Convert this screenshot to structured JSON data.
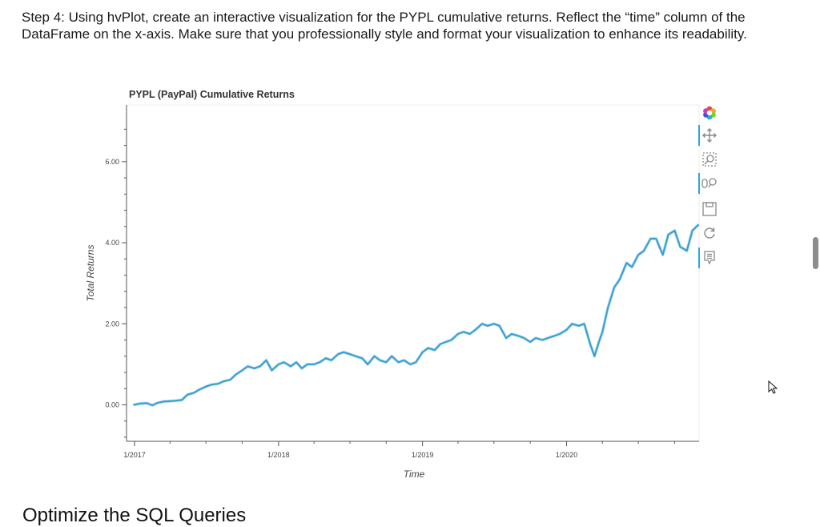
{
  "step": {
    "text": "Step 4: Using hvPlot, create an interactive visualization for the PYPL cumulative returns. Reflect the “time” column of the DataFrame on the x-axis. Make sure that you professionally style and format your visualization to enhance its readability."
  },
  "next_section": {
    "heading": "Optimize the SQL Queries"
  },
  "toolbar": {
    "tools": [
      {
        "name": "bokeh-logo-icon",
        "active": false
      },
      {
        "name": "pan-icon",
        "active": true
      },
      {
        "name": "box-zoom-icon",
        "active": false
      },
      {
        "name": "wheel-zoom-icon",
        "active": true
      },
      {
        "name": "save-icon",
        "active": false
      },
      {
        "name": "reset-icon",
        "active": false
      },
      {
        "name": "hover-icon",
        "active": true
      }
    ]
  },
  "colors": {
    "line": "#3aa0d0",
    "axis": "#555555",
    "accent": "#26aae1"
  },
  "chart_data": {
    "type": "line",
    "title": "PYPL (PayPal) Cumulative Returns",
    "xlabel": "Time",
    "ylabel": "Total Returns",
    "x_ticks": [
      "1/2017",
      "1/2018",
      "1/2019",
      "1/2020"
    ],
    "y_ticks": [
      "0.00",
      "2.00",
      "4.00",
      "6.00"
    ],
    "xlim": [
      "2017-01-01",
      "2020-12-02"
    ],
    "ylim": [
      -0.9,
      7.4
    ],
    "grid": false,
    "series": [
      {
        "x": [
          "2016-12-29",
          "2017-01-15",
          "2017-02-01",
          "2017-02-15",
          "2017-03-01",
          "2017-03-15",
          "2017-04-01",
          "2017-04-15",
          "2017-05-01",
          "2017-05-15",
          "2017-06-01",
          "2017-06-15",
          "2017-07-01",
          "2017-07-15",
          "2017-08-01",
          "2017-08-15",
          "2017-09-01",
          "2017-09-15",
          "2017-10-01",
          "2017-10-15",
          "2017-11-01",
          "2017-11-15",
          "2017-12-01",
          "2017-12-15",
          "2018-01-01",
          "2018-01-15",
          "2018-02-01",
          "2018-02-15",
          "2018-03-01",
          "2018-03-15",
          "2018-04-01",
          "2018-04-15",
          "2018-05-01",
          "2018-05-15",
          "2018-06-01",
          "2018-06-15",
          "2018-07-01",
          "2018-07-15",
          "2018-08-01",
          "2018-08-15",
          "2018-09-01",
          "2018-09-15",
          "2018-10-01",
          "2018-10-15",
          "2018-11-01",
          "2018-11-15",
          "2018-12-01",
          "2018-12-15",
          "2019-01-01",
          "2019-01-15",
          "2019-02-01",
          "2019-02-15",
          "2019-03-01",
          "2019-03-15",
          "2019-04-01",
          "2019-04-15",
          "2019-05-01",
          "2019-05-15",
          "2019-06-01",
          "2019-06-15",
          "2019-07-01",
          "2019-07-15",
          "2019-08-01",
          "2019-08-15",
          "2019-09-01",
          "2019-09-15",
          "2019-10-01",
          "2019-10-15",
          "2019-11-01",
          "2019-11-15",
          "2019-12-01",
          "2019-12-15",
          "2020-01-01",
          "2020-01-15",
          "2020-02-01",
          "2020-02-15",
          "2020-03-01",
          "2020-03-12",
          "2020-03-23",
          "2020-04-01",
          "2020-04-15",
          "2020-05-01",
          "2020-05-15",
          "2020-06-01",
          "2020-06-15",
          "2020-07-01",
          "2020-07-15",
          "2020-08-01",
          "2020-08-15",
          "2020-09-01",
          "2020-09-15",
          "2020-10-01",
          "2020-10-15",
          "2020-11-01",
          "2020-11-15",
          "2020-12-01"
        ],
        "y": [
          0.0,
          0.03,
          0.04,
          -0.01,
          0.05,
          0.08,
          0.09,
          0.1,
          0.12,
          0.25,
          0.3,
          0.38,
          0.45,
          0.5,
          0.52,
          0.58,
          0.62,
          0.75,
          0.85,
          0.95,
          0.9,
          0.95,
          1.1,
          0.85,
          1.0,
          1.05,
          0.95,
          1.05,
          0.9,
          1.0,
          1.0,
          1.05,
          1.15,
          1.1,
          1.25,
          1.3,
          1.25,
          1.2,
          1.15,
          1.0,
          1.2,
          1.1,
          1.05,
          1.2,
          1.05,
          1.1,
          1.0,
          1.05,
          1.3,
          1.4,
          1.35,
          1.5,
          1.55,
          1.6,
          1.75,
          1.8,
          1.75,
          1.85,
          2.0,
          1.95,
          2.0,
          1.95,
          1.65,
          1.75,
          1.7,
          1.65,
          1.55,
          1.65,
          1.6,
          1.65,
          1.7,
          1.75,
          1.85,
          2.0,
          1.95,
          2.0,
          1.5,
          1.2,
          1.55,
          1.8,
          2.4,
          2.9,
          3.1,
          3.5,
          3.4,
          3.7,
          3.8,
          4.1,
          4.1,
          3.7,
          4.2,
          4.3,
          3.9,
          3.8,
          4.3,
          4.45
        ]
      }
    ]
  }
}
